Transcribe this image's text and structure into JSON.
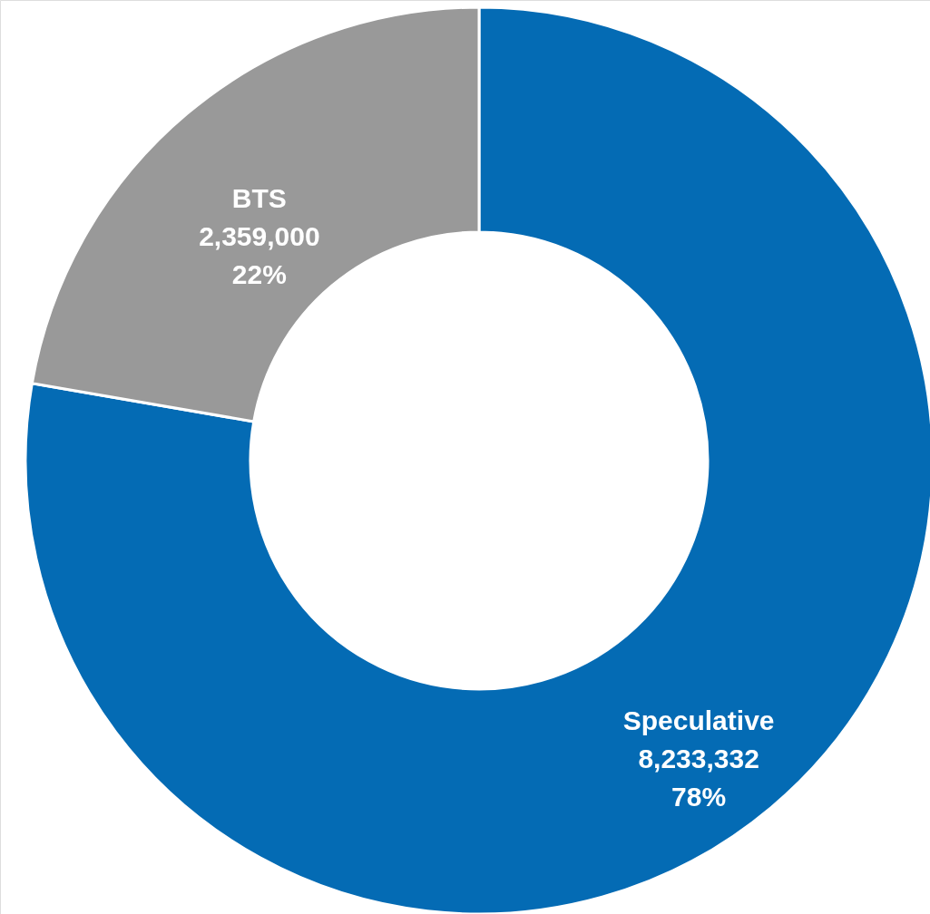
{
  "chart_data": {
    "type": "donut",
    "categories": [
      "Speculative",
      "BTS"
    ],
    "values": [
      8233332,
      2359000
    ],
    "colors": [
      "#046bb4",
      "#999999"
    ],
    "value_labels": [
      "8,233,332\n78%",
      "2,359,000\n22%"
    ]
  }
}
